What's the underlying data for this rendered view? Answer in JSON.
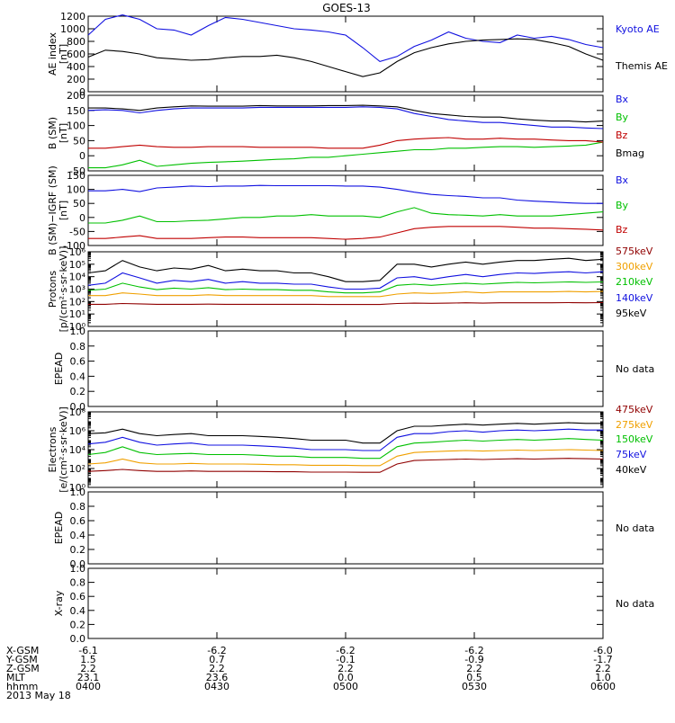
{
  "title": "GOES-13",
  "colors": {
    "black": "#000000",
    "blue": "#1010e0",
    "green": "#00c000",
    "red": "#c00000",
    "orange": "#f0a000",
    "darkred": "#900000"
  },
  "xticks": [
    0,
    30,
    60,
    90,
    120
  ],
  "footer": {
    "rows": [
      {
        "label": "X-GSM",
        "values": [
          "-6.1",
          "-6.2",
          "-6.2",
          "-6.2",
          "-6.0"
        ]
      },
      {
        "label": "Y-GSM",
        "values": [
          "1.5",
          "0.7",
          "-0.1",
          "-0.9",
          "-1.7"
        ]
      },
      {
        "label": "Z-GSM",
        "values": [
          "2.2",
          "2.2",
          "2.2",
          "2.2",
          "2.2"
        ]
      },
      {
        "label": "MLT",
        "values": [
          "23.1",
          "23.6",
          "0.0",
          "0.5",
          "1.0"
        ]
      },
      {
        "label": "hhmm",
        "values": [
          "0400",
          "0430",
          "0500",
          "0530",
          "0600"
        ]
      }
    ],
    "date": "2013 May 18"
  },
  "chart_data": [
    {
      "id": "ae",
      "type": "line",
      "ylabel": [
        "AE index",
        "[nT]"
      ],
      "scale": "linear",
      "ylim": [
        0,
        1200
      ],
      "yticks": [
        0,
        200,
        400,
        600,
        800,
        1000,
        1200
      ],
      "x": [
        0,
        4,
        8,
        12,
        16,
        20,
        24,
        28,
        32,
        36,
        40,
        44,
        48,
        52,
        56,
        60,
        64,
        68,
        72,
        76,
        80,
        84,
        88,
        92,
        96,
        100,
        104,
        108,
        112,
        116,
        120
      ],
      "series": [
        {
          "name": "Kyoto AE",
          "color": "blue",
          "values": [
            900,
            1150,
            1220,
            1150,
            1000,
            980,
            900,
            1050,
            1180,
            1150,
            1100,
            1050,
            1000,
            980,
            950,
            900,
            700,
            480,
            560,
            720,
            820,
            950,
            850,
            800,
            780,
            900,
            850,
            880,
            830,
            750,
            700
          ]
        },
        {
          "name": "Themis AE",
          "color": "black",
          "values": [
            550,
            660,
            640,
            600,
            540,
            520,
            500,
            510,
            540,
            560,
            560,
            580,
            540,
            480,
            400,
            320,
            240,
            300,
            480,
            620,
            700,
            760,
            800,
            820,
            830,
            840,
            830,
            780,
            720,
            600,
            500
          ]
        }
      ]
    },
    {
      "id": "bsm",
      "type": "line",
      "ylabel": [
        "B (SM)",
        "[nT]"
      ],
      "scale": "linear",
      "ylim": [
        -50,
        200
      ],
      "yticks": [
        -50,
        0,
        50,
        100,
        150,
        200
      ],
      "x": [
        0,
        4,
        8,
        12,
        16,
        20,
        24,
        28,
        32,
        36,
        40,
        44,
        48,
        52,
        56,
        60,
        64,
        68,
        72,
        76,
        80,
        84,
        88,
        92,
        96,
        100,
        104,
        108,
        112,
        116,
        120
      ],
      "series": [
        {
          "name": "Bx",
          "color": "blue",
          "values": [
            150,
            152,
            150,
            142,
            150,
            155,
            158,
            158,
            158,
            158,
            160,
            160,
            160,
            160,
            160,
            160,
            162,
            160,
            155,
            140,
            130,
            120,
            115,
            110,
            110,
            105,
            100,
            95,
            95,
            92,
            90
          ]
        },
        {
          "name": "By",
          "color": "green",
          "values": [
            -40,
            -40,
            -30,
            -15,
            -35,
            -30,
            -25,
            -22,
            -20,
            -18,
            -15,
            -12,
            -10,
            -5,
            -5,
            0,
            5,
            10,
            15,
            20,
            20,
            25,
            25,
            28,
            30,
            30,
            28,
            30,
            32,
            35,
            45
          ]
        },
        {
          "name": "Bz",
          "color": "red",
          "values": [
            25,
            25,
            30,
            35,
            30,
            28,
            28,
            30,
            30,
            30,
            28,
            28,
            28,
            28,
            25,
            25,
            25,
            35,
            50,
            55,
            58,
            60,
            55,
            55,
            58,
            55,
            55,
            52,
            50,
            50,
            45
          ]
        },
        {
          "name": "Bmag",
          "color": "black",
          "values": [
            158,
            158,
            155,
            150,
            158,
            162,
            165,
            164,
            164,
            164,
            166,
            165,
            165,
            165,
            166,
            166,
            167,
            165,
            162,
            150,
            140,
            135,
            130,
            128,
            128,
            122,
            118,
            115,
            115,
            112,
            115
          ]
        }
      ]
    },
    {
      "id": "bigrf",
      "type": "line",
      "ylabel": [
        "B (SM)−IGRF (SM)",
        "[nT]"
      ],
      "scale": "linear",
      "ylim": [
        -100,
        150
      ],
      "yticks": [
        -100,
        -50,
        0,
        50,
        100,
        150
      ],
      "x": [
        0,
        4,
        8,
        12,
        16,
        20,
        24,
        28,
        32,
        36,
        40,
        44,
        48,
        52,
        56,
        60,
        64,
        68,
        72,
        76,
        80,
        84,
        88,
        92,
        96,
        100,
        104,
        108,
        112,
        116,
        120
      ],
      "series": [
        {
          "name": "Bx",
          "color": "blue",
          "values": [
            95,
            95,
            100,
            92,
            105,
            108,
            112,
            110,
            112,
            112,
            114,
            113,
            113,
            113,
            113,
            112,
            112,
            108,
            100,
            90,
            82,
            78,
            75,
            70,
            70,
            62,
            58,
            55,
            52,
            50,
            50
          ]
        },
        {
          "name": "By",
          "color": "green",
          "values": [
            -20,
            -20,
            -10,
            5,
            -15,
            -15,
            -12,
            -10,
            -5,
            0,
            0,
            5,
            5,
            10,
            5,
            5,
            5,
            0,
            20,
            35,
            15,
            10,
            8,
            5,
            10,
            5,
            5,
            5,
            10,
            15,
            20
          ]
        },
        {
          "name": "Bz",
          "color": "red",
          "values": [
            -75,
            -75,
            -70,
            -65,
            -75,
            -75,
            -75,
            -72,
            -70,
            -70,
            -72,
            -72,
            -72,
            -72,
            -75,
            -78,
            -75,
            -70,
            -55,
            -40,
            -35,
            -32,
            -32,
            -32,
            -32,
            -35,
            -38,
            -38,
            -40,
            -42,
            -45
          ]
        }
      ]
    },
    {
      "id": "protons",
      "type": "line",
      "ylabel": [
        "Protons",
        "[p/(cm²·s·sr·keV)]"
      ],
      "scale": "log",
      "ylim": [
        1,
        1000000
      ],
      "yticks": [
        1,
        10,
        100,
        1000,
        10000,
        100000,
        1000000
      ],
      "ytick_labels": [
        "10⁰",
        "10¹",
        "10²",
        "10³",
        "10⁴",
        "10⁵",
        "10⁶"
      ],
      "x": [
        0,
        4,
        8,
        12,
        16,
        20,
        24,
        28,
        32,
        36,
        40,
        44,
        48,
        52,
        56,
        60,
        64,
        68,
        72,
        76,
        80,
        84,
        88,
        92,
        96,
        100,
        104,
        108,
        112,
        116,
        120
      ],
      "series": [
        {
          "name": "95keV",
          "color": "black",
          "values": [
            20000,
            30000,
            200000,
            60000,
            30000,
            50000,
            40000,
            80000,
            30000,
            40000,
            30000,
            30000,
            20000,
            20000,
            10000,
            4000,
            4000,
            5000,
            100000,
            100000,
            60000,
            100000,
            150000,
            100000,
            150000,
            200000,
            200000,
            250000,
            300000,
            200000,
            250000
          ]
        },
        {
          "name": "140keV",
          "color": "blue",
          "values": [
            2000,
            3000,
            20000,
            8000,
            3000,
            5000,
            4000,
            6000,
            3000,
            4000,
            3000,
            3000,
            2500,
            2500,
            1500,
            1000,
            1000,
            1200,
            8000,
            10000,
            6000,
            10000,
            15000,
            10000,
            15000,
            20000,
            18000,
            22000,
            25000,
            20000,
            25000
          ]
        },
        {
          "name": "210keV",
          "color": "green",
          "values": [
            800,
            1000,
            3000,
            1500,
            900,
            1200,
            1000,
            1300,
            900,
            1000,
            900,
            900,
            800,
            800,
            600,
            500,
            500,
            600,
            2000,
            2500,
            2000,
            2500,
            3000,
            2500,
            3000,
            3500,
            3200,
            3500,
            3800,
            3500,
            3800
          ]
        },
        {
          "name": "300keV",
          "color": "orange",
          "values": [
            300,
            300,
            500,
            400,
            300,
            300,
            300,
            350,
            300,
            300,
            300,
            300,
            300,
            300,
            250,
            250,
            250,
            250,
            400,
            500,
            450,
            500,
            600,
            500,
            600,
            600,
            600,
            600,
            650,
            600,
            650
          ]
        },
        {
          "name": "575keV",
          "color": "darkred",
          "values": [
            60,
            60,
            70,
            65,
            60,
            60,
            60,
            62,
            60,
            60,
            60,
            60,
            60,
            60,
            58,
            58,
            58,
            58,
            70,
            75,
            72,
            75,
            80,
            75,
            80,
            80,
            80,
            80,
            82,
            80,
            82
          ]
        }
      ]
    },
    {
      "id": "epead_p",
      "type": "line",
      "ylabel": [
        "EPEAD"
      ],
      "scale": "linear",
      "ylim": [
        0,
        1
      ],
      "yticks": [
        0,
        0.2,
        0.4,
        0.6,
        0.8,
        1
      ],
      "ytick_labels": [
        "0.0",
        "0.2",
        "0.4",
        "0.6",
        "0.8",
        "1.0"
      ],
      "no_data": "No data",
      "series": []
    },
    {
      "id": "electrons",
      "type": "line",
      "ylabel": [
        "Electrons",
        "[e/(cm²·s·sr·keV)]"
      ],
      "scale": "log",
      "ylim": [
        1,
        100000000
      ],
      "yticks": [
        1,
        100,
        10000,
        1000000,
        100000000
      ],
      "ytick_labels": [
        "10⁰",
        "10²",
        "10⁴",
        "10⁶",
        "10⁸"
      ],
      "x": [
        0,
        4,
        8,
        12,
        16,
        20,
        24,
        28,
        32,
        36,
        40,
        44,
        48,
        52,
        56,
        60,
        64,
        68,
        72,
        76,
        80,
        84,
        88,
        92,
        96,
        100,
        104,
        108,
        112,
        116,
        120
      ],
      "series": [
        {
          "name": "40keV",
          "color": "black",
          "values": [
            500000,
            600000,
            1500000,
            500000,
            300000,
            400000,
            500000,
            300000,
            300000,
            300000,
            250000,
            200000,
            150000,
            100000,
            100000,
            100000,
            50000,
            50000,
            1000000,
            3000000,
            3000000,
            4000000,
            5000000,
            4000000,
            5000000,
            6000000,
            5000000,
            6000000,
            7000000,
            6000000,
            6000000
          ]
        },
        {
          "name": "75keV",
          "color": "blue",
          "values": [
            40000,
            60000,
            200000,
            60000,
            30000,
            40000,
            50000,
            30000,
            30000,
            30000,
            25000,
            20000,
            15000,
            10000,
            10000,
            10000,
            8000,
            8000,
            200000,
            500000,
            500000,
            800000,
            1000000,
            700000,
            1000000,
            1200000,
            1000000,
            1200000,
            1500000,
            1200000,
            1200000
          ]
        },
        {
          "name": "150keV",
          "color": "green",
          "values": [
            3000,
            5000,
            20000,
            5000,
            3000,
            3500,
            4000,
            3000,
            3000,
            3000,
            2500,
            2000,
            2000,
            1500,
            1500,
            1500,
            1200,
            1200,
            20000,
            50000,
            60000,
            80000,
            100000,
            80000,
            100000,
            120000,
            100000,
            120000,
            150000,
            120000,
            100000
          ]
        },
        {
          "name": "275keV",
          "color": "orange",
          "values": [
            300,
            400,
            1000,
            400,
            300,
            300,
            350,
            300,
            300,
            300,
            280,
            250,
            250,
            220,
            220,
            220,
            200,
            200,
            2000,
            5000,
            6000,
            7000,
            8000,
            7000,
            8000,
            9000,
            8000,
            9000,
            10000,
            9000,
            8000
          ]
        },
        {
          "name": "475keV",
          "color": "darkred",
          "values": [
            50,
            60,
            80,
            60,
            50,
            50,
            55,
            50,
            50,
            50,
            48,
            45,
            45,
            42,
            42,
            42,
            40,
            40,
            300,
            700,
            800,
            900,
            1000,
            900,
            1000,
            1100,
            1000,
            1100,
            1200,
            1100,
            1000
          ]
        }
      ]
    },
    {
      "id": "epead_e",
      "type": "line",
      "ylabel": [
        "EPEAD"
      ],
      "scale": "linear",
      "ylim": [
        0,
        1
      ],
      "yticks": [
        0,
        0.2,
        0.4,
        0.6,
        0.8,
        1
      ],
      "ytick_labels": [
        "0.0",
        "0.2",
        "0.4",
        "0.6",
        "0.8",
        "1.0"
      ],
      "no_data": "No data",
      "series": []
    },
    {
      "id": "xray",
      "type": "line",
      "ylabel": [
        "X-ray"
      ],
      "scale": "linear",
      "ylim": [
        0,
        1
      ],
      "yticks": [
        0,
        0.2,
        0.4,
        0.6,
        0.8,
        1
      ],
      "ytick_labels": [
        "0.0",
        "0.2",
        "0.4",
        "0.6",
        "0.8",
        "1.0"
      ],
      "no_data": "No data",
      "series": []
    }
  ]
}
